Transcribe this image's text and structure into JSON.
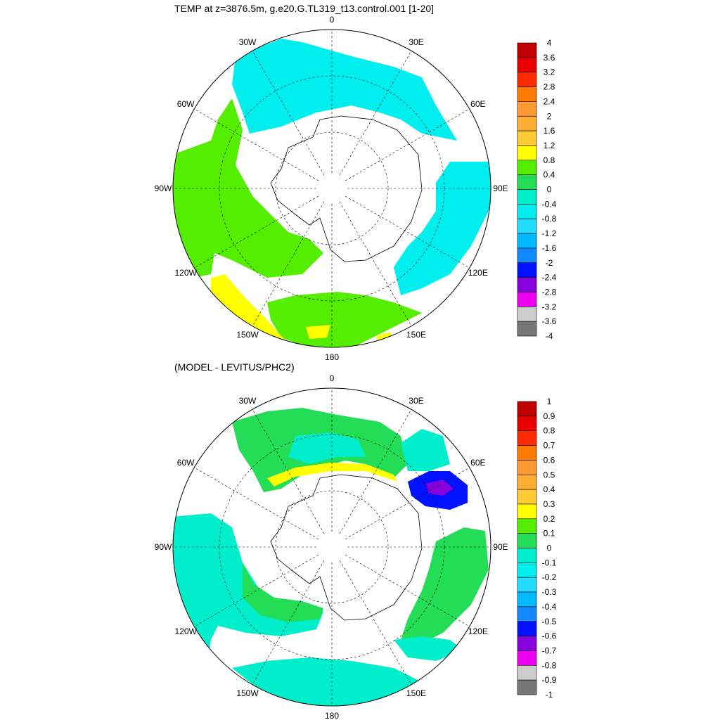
{
  "map1": {
    "title": "TEMP at z=3876.5m, g.e20.G.TL319_t13.control.001 [1-20]",
    "lon_labels": [
      "0",
      "30E",
      "60E",
      "90E",
      "120E",
      "150E",
      "180",
      "150W",
      "120W",
      "90W",
      "60W",
      "30W"
    ],
    "colorbar": {
      "labels": [
        "4",
        "3.6",
        "3.2",
        "2.8",
        "2.4",
        "2",
        "1.6",
        "1.2",
        "0.8",
        "0.4",
        "0",
        "-0.4",
        "-0.8",
        "-1.2",
        "-1.6",
        "-2",
        "-2.4",
        "-2.8",
        "-3.2",
        "-3.6",
        "-4"
      ],
      "colors": [
        "#c00000",
        "#e60000",
        "#ff2a00",
        "#ff7a00",
        "#ff9a33",
        "#ffad33",
        "#ffcc33",
        "#ffff00",
        "#55ee00",
        "#22dd55",
        "#00eecc",
        "#00eeee",
        "#22ddff",
        "#00bbff",
        "#1188ff",
        "#0011ff",
        "#8800dd",
        "#ee00ee",
        "#cccccc",
        "#777777"
      ]
    }
  },
  "map2": {
    "title": "(MODEL - LEVITUS/PHC2)",
    "lon_labels": [
      "0",
      "30E",
      "60E",
      "90E",
      "120E",
      "150E",
      "180",
      "150W",
      "120W",
      "90W",
      "60W",
      "30W"
    ],
    "colorbar": {
      "labels": [
        "1",
        "0.9",
        "0.8",
        "0.7",
        "0.6",
        "0.5",
        "0.4",
        "0.3",
        "0.2",
        "0.1",
        "0",
        "-0.1",
        "-0.2",
        "-0.3",
        "-0.4",
        "-0.5",
        "-0.6",
        "-0.7",
        "-0.8",
        "-0.9",
        "-1"
      ],
      "colors": [
        "#c00000",
        "#e60000",
        "#ff2a00",
        "#ff7a00",
        "#ff9a33",
        "#ffad33",
        "#ffcc33",
        "#ffff00",
        "#55ee00",
        "#22dd55",
        "#00eecc",
        "#00eeee",
        "#22ddff",
        "#00bbff",
        "#1188ff",
        "#0011ff",
        "#8800dd",
        "#ee00ee",
        "#cccccc",
        "#777777"
      ]
    }
  }
}
